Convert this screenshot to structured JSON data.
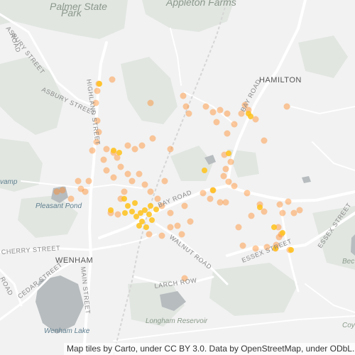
{
  "map": {
    "labels": {
      "palmer_state_park_1": "Palmer State",
      "palmer_state_park_2": "Park",
      "appleton_farms": "Appleton Farms",
      "hamilton": "HAMILTON",
      "wenham": "WENHAM",
      "pleasant_pond": "Pleasant Pond",
      "swamp": "vamp",
      "wenham_lake": "Wenham Lake",
      "longham_reservoir": "Longham Reservoir",
      "asbury_street_top": "ASBURY STREET",
      "asbury_street_mid": "ASBURY STREET",
      "highland_street": "HIGHLAND STREET",
      "bay_road_ne": "BAY ROAD",
      "bay_road": "BAY ROAD",
      "walnut_road": "WALNUT ROAD",
      "larch_row": "LARCH ROW",
      "essex_street": "ESSEX STREET",
      "essex_street_e": "ESSEX STREET",
      "cherry_street": "CHERRY STREET",
      "main_street": "MAIN STREET",
      "cedar_street": "CEDAR STREET",
      "road_w": "ROAD",
      "road_sw": "ROAD",
      "bec": "Bec",
      "coy": "Coy"
    },
    "heat_color": "#ff8c2a",
    "hotspot_color": "#ffc21a"
  },
  "attribution": "Map tiles by Carto, under CC BY 3.0. Data by OpenStreetMap, under ODbL."
}
